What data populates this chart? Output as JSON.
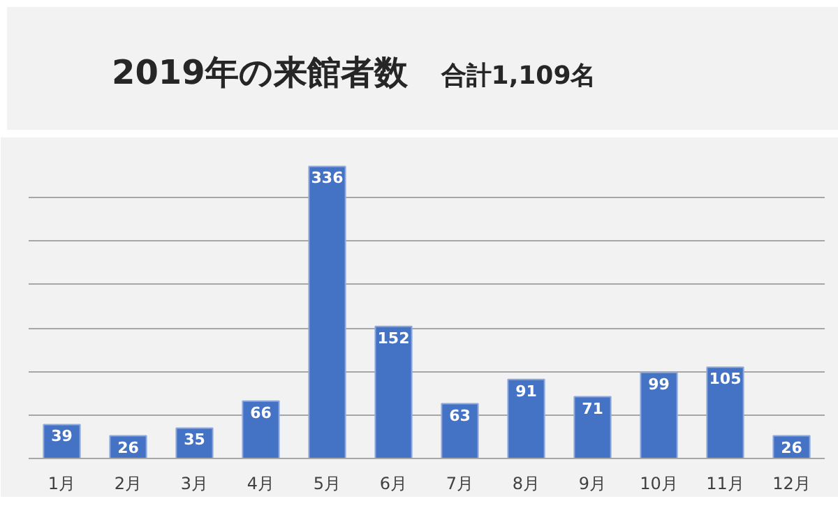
{
  "chart_data": {
    "type": "bar",
    "title": "2019年の来館者数",
    "subtitle": "合計1,109名",
    "categories": [
      "1月",
      "2月",
      "3月",
      "4月",
      "5月",
      "6月",
      "7月",
      "8月",
      "9月",
      "10月",
      "11月",
      "12月"
    ],
    "values": [
      39,
      26,
      35,
      66,
      336,
      152,
      63,
      91,
      71,
      99,
      105,
      26
    ],
    "color": "#4472c4",
    "data_labels": true,
    "grid": "y",
    "tick_labels": "x",
    "ylim": [
      0,
      350
    ],
    "yticks": [
      {
        "value": 0,
        "label": null
      },
      {
        "value": 50,
        "label": null
      },
      {
        "value": 100,
        "label": null
      },
      {
        "value": 150,
        "label": null
      },
      {
        "value": 200,
        "label": null
      },
      {
        "value": 250,
        "label": null
      },
      {
        "value": 300,
        "label": null
      },
      {
        "value": 350,
        "label": null
      }
    ]
  }
}
